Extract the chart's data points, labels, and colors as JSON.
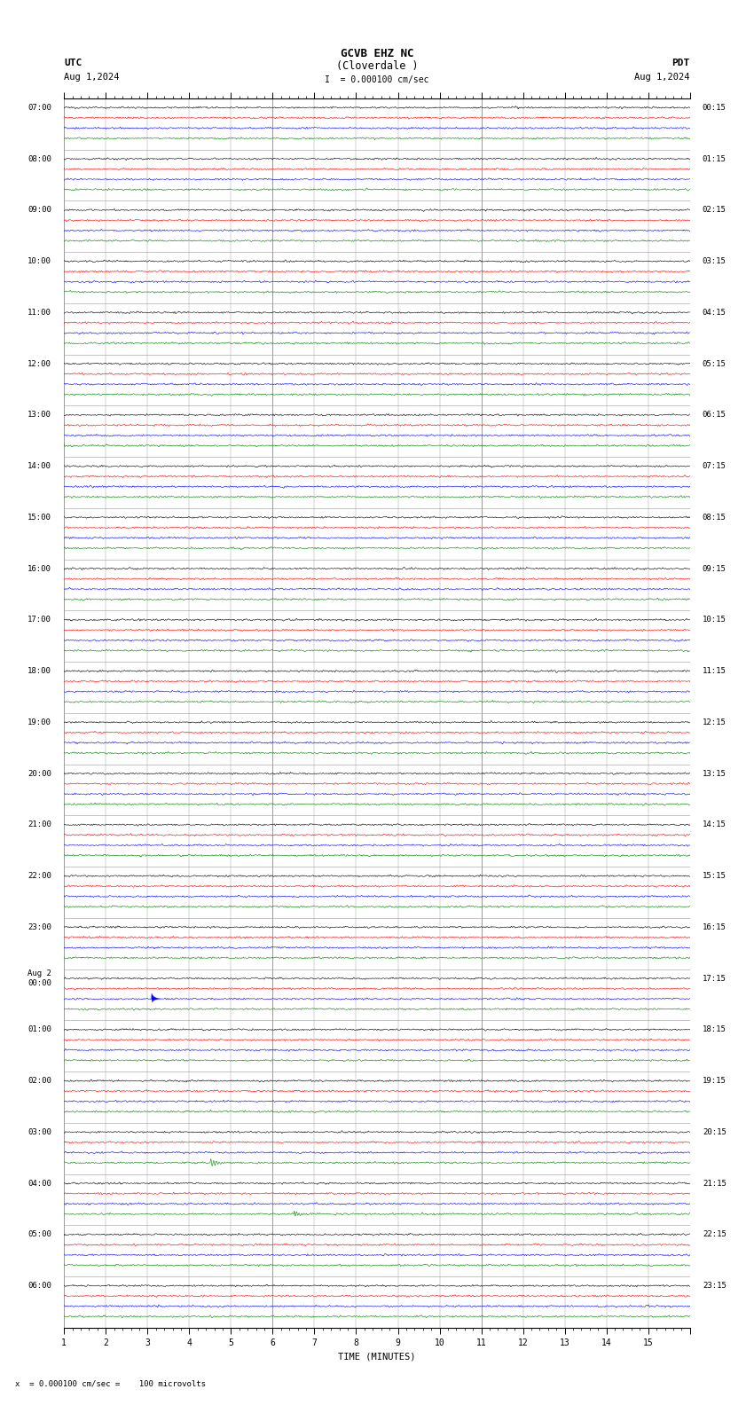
{
  "title_line1": "GCVB EHZ NC",
  "title_line2": "(Cloverdale )",
  "scale_label": "= 0.000100 cm/sec",
  "utc_label": "UTC",
  "utc_date": "Aug 1,2024",
  "pdt_label": "PDT",
  "pdt_date": "Aug 1,2024",
  "bottom_label": "x  = 0.000100 cm/sec =    100 microvolts",
  "xlabel": "TIME (MINUTES)",
  "left_times": [
    "07:00",
    "08:00",
    "09:00",
    "10:00",
    "11:00",
    "12:00",
    "13:00",
    "14:00",
    "15:00",
    "16:00",
    "17:00",
    "18:00",
    "19:00",
    "20:00",
    "21:00",
    "22:00",
    "23:00",
    "Aug 2\n00:00",
    "01:00",
    "02:00",
    "03:00",
    "04:00",
    "05:00",
    "06:00"
  ],
  "right_times": [
    "00:15",
    "01:15",
    "02:15",
    "03:15",
    "04:15",
    "05:15",
    "06:15",
    "07:15",
    "08:15",
    "09:15",
    "10:15",
    "11:15",
    "12:15",
    "13:15",
    "14:15",
    "15:15",
    "16:15",
    "17:15",
    "18:15",
    "19:15",
    "20:15",
    "21:15",
    "22:15",
    "23:15"
  ],
  "n_rows": 24,
  "n_traces_per_row": 4,
  "trace_colors": [
    "black",
    "red",
    "blue",
    "green"
  ],
  "minutes_per_row": 15,
  "background_color": "white",
  "grid_color": "#999999",
  "noise_scale_black": 0.025,
  "noise_scale_red": 0.018,
  "noise_scale_blue": 0.02,
  "noise_scale_green": 0.015,
  "special_blue_spike_row": 17,
  "special_blue_spike_minute": 2.1,
  "special_green_spike1_row": 20,
  "special_green_spike1_minute": 3.5,
  "special_green_spike2_row": 21,
  "special_green_spike2_minute": 5.5
}
